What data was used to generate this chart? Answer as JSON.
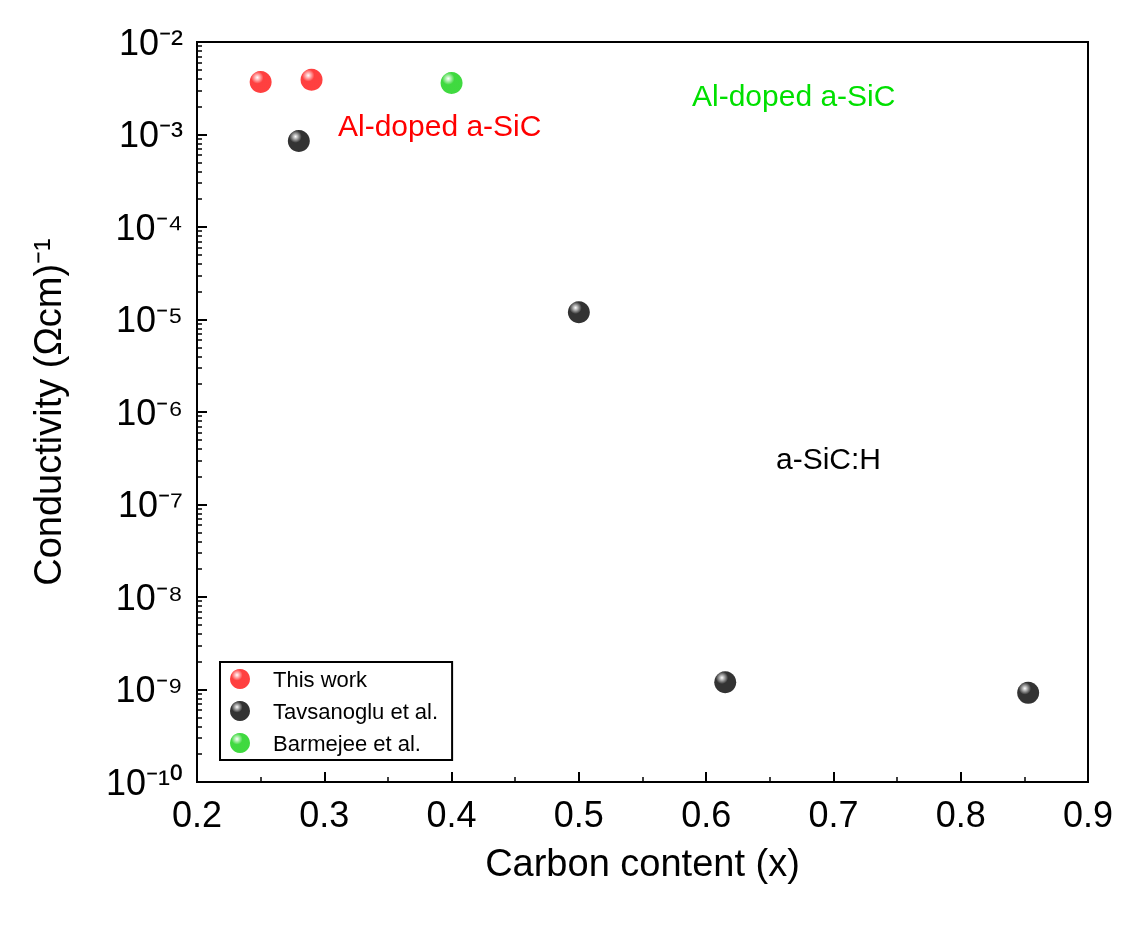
{
  "chart_data": {
    "type": "scatter",
    "xlabel": "Carbon content (x)",
    "ylabel": "Conductivity (Ωcm)⁻¹",
    "xlim": [
      0.2,
      0.9
    ],
    "xticks": [
      0.2,
      0.3,
      0.4,
      0.5,
      0.6,
      0.7,
      0.8,
      0.9
    ],
    "ylim": [
      1e-10,
      0.01
    ],
    "log": "y",
    "yticks": [
      {
        "value": 1e-10,
        "label": "10⁻¹⁰"
      },
      {
        "value": 1e-09,
        "label": "10⁻⁹"
      },
      {
        "value": 1e-08,
        "label": "10⁻⁸"
      },
      {
        "value": 1e-07,
        "label": "10⁻⁷"
      },
      {
        "value": 1e-06,
        "label": "10⁻⁶"
      },
      {
        "value": 1e-05,
        "label": "10⁻⁵"
      },
      {
        "value": 0.0001,
        "label": "10⁻⁴"
      },
      {
        "value": 0.001,
        "label": "10⁻³"
      },
      {
        "value": 0.01,
        "label": "10⁻²"
      }
    ],
    "series": [
      {
        "name": "This work",
        "color": "#ff1010",
        "x": [
          0.25,
          0.29
        ],
        "values": [
          0.0037,
          0.0039
        ]
      },
      {
        "name": "Tavsanoglu et al.",
        "color": "#000000",
        "x": [
          0.28,
          0.5,
          0.615,
          0.853
        ],
        "values": [
          0.00085,
          1.2e-05,
          1.2e-09,
          9.2e-10
        ]
      },
      {
        "name": "Barmejee et al.",
        "color": "#10d010",
        "x": [
          0.4
        ],
        "values": [
          0.0036
        ]
      }
    ],
    "annotations": [
      "Al-doped a-SiC",
      "Al-doped a-SiC",
      "a-SiC:H"
    ],
    "marker": "circle",
    "legend": "bottom left",
    "grid": false
  }
}
